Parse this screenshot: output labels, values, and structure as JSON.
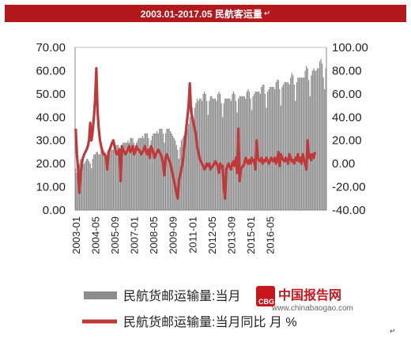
{
  "title": "2003.01-2017.05 民航客运量",
  "title_mark": "↵",
  "chart_data": {
    "type": "bar",
    "x_tick_labels": [
      "2003-01",
      "2004-05",
      "2005-09",
      "2007-01",
      "2008-05",
      "2009-09",
      "2011-01",
      "2012-05",
      "2013-09",
      "2015-01",
      "2016-05"
    ],
    "y_left": {
      "ticks": [
        "0.00",
        "10.00",
        "20.00",
        "30.00",
        "40.00",
        "50.00",
        "60.00",
        "70.00"
      ],
      "ylim": [
        0,
        70
      ]
    },
    "y_right": {
      "ticks": [
        "-40.00",
        "-20.00",
        "0.00",
        "20.00",
        "40.00",
        "60.00",
        "80.00",
        "100.00"
      ],
      "ylim": [
        -40,
        100
      ]
    },
    "grid": false,
    "legend_position": "bottom",
    "series": [
      {
        "name": "民航货邮运输量:当月",
        "axis": "left",
        "type": "bar",
        "color": "#8c8c8c",
        "x_start": "2003-01",
        "values": [
          18,
          16,
          19,
          20,
          22,
          21,
          20,
          20,
          21,
          22,
          22,
          21,
          20,
          18,
          22,
          24,
          24,
          25,
          25,
          24,
          24,
          26,
          27,
          26,
          25,
          22,
          24,
          25,
          25,
          26,
          26,
          26,
          26,
          28,
          28,
          28,
          27,
          24,
          28,
          29,
          29,
          29,
          29,
          30,
          29,
          31,
          31,
          31,
          29,
          26,
          29,
          30,
          31,
          31,
          31,
          32,
          31,
          33,
          33,
          33,
          31,
          27,
          30,
          32,
          33,
          33,
          33,
          34,
          33,
          35,
          35,
          35,
          33,
          29,
          33,
          35,
          35,
          35,
          34,
          33,
          32,
          31,
          30,
          28,
          26,
          22,
          27,
          30,
          31,
          32,
          33,
          34,
          35,
          37,
          40,
          42,
          44,
          38,
          44,
          46,
          48,
          47,
          48,
          48,
          47,
          50,
          51,
          50,
          47,
          41,
          47,
          49,
          49,
          48,
          48,
          48,
          47,
          50,
          51,
          50,
          46,
          40,
          46,
          48,
          48,
          48,
          48,
          48,
          47,
          50,
          51,
          50,
          47,
          42,
          48,
          49,
          49,
          49,
          49,
          49,
          48,
          51,
          52,
          51,
          48,
          43,
          49,
          50,
          51,
          51,
          51,
          51,
          50,
          53,
          54,
          54,
          50,
          44,
          51,
          52,
          53,
          53,
          53,
          53,
          52,
          55,
          56,
          56,
          52,
          45,
          53,
          54,
          55,
          55,
          55,
          55,
          54,
          57,
          59,
          58,
          54,
          47,
          55,
          57,
          57,
          57,
          57,
          57,
          57,
          60,
          62,
          61,
          56,
          49,
          58,
          60,
          61,
          60,
          60,
          61,
          61,
          64,
          65,
          63,
          57,
          52,
          61
        ]
      },
      {
        "name": "民航货邮运输量:当月同比  月 %",
        "axis": "right",
        "type": "line",
        "color": "#c0393a",
        "x_start": "2003-01",
        "values": [
          30,
          8,
          -5,
          -25,
          -10,
          0,
          5,
          8,
          10,
          12,
          15,
          20,
          35,
          20,
          28,
          40,
          55,
          82,
          45,
          30,
          20,
          15,
          10,
          8,
          8,
          5,
          -5,
          10,
          12,
          15,
          18,
          20,
          15,
          10,
          8,
          10,
          12,
          -15,
          15,
          12,
          10,
          8,
          10,
          12,
          15,
          10,
          12,
          15,
          8,
          10,
          15,
          12,
          12,
          10,
          8,
          10,
          12,
          15,
          10,
          8,
          12,
          5,
          15,
          12,
          10,
          5,
          8,
          10,
          12,
          10,
          8,
          5,
          0,
          -10,
          5,
          8,
          5,
          3,
          0,
          -5,
          -10,
          -15,
          -20,
          -25,
          -30,
          -15,
          -10,
          -5,
          0,
          10,
          20,
          30,
          40,
          50,
          69,
          45,
          40,
          35,
          30,
          25,
          15,
          10,
          5,
          2,
          0,
          -2,
          -5,
          -3,
          0,
          -2,
          0,
          -5,
          -3,
          -2,
          0,
          2,
          0,
          -2,
          -8,
          0,
          -3,
          -2,
          -20,
          -30,
          -5,
          -2,
          0,
          -3,
          -5,
          0,
          2,
          -2,
          5,
          -8,
          30,
          -15,
          -5,
          -3,
          -2,
          0,
          5,
          2,
          0,
          3,
          0,
          5,
          2,
          3,
          -5,
          20,
          5,
          3,
          2,
          5,
          0,
          3,
          2,
          5,
          3,
          0,
          2,
          5,
          3,
          2,
          5,
          0,
          3,
          10,
          -2,
          8,
          5,
          3,
          2,
          5,
          3,
          0,
          8,
          5,
          2,
          3,
          0,
          5,
          3,
          8,
          2,
          5,
          0,
          8,
          3,
          0,
          -5,
          20,
          5,
          8,
          3,
          8,
          5,
          10
        ]
      }
    ]
  },
  "watermark": {
    "name": "中国报告网",
    "url": "www.chinabaogao.com",
    "badge": "CBG",
    "color": "#c8161d"
  },
  "corner_mark": "↵"
}
